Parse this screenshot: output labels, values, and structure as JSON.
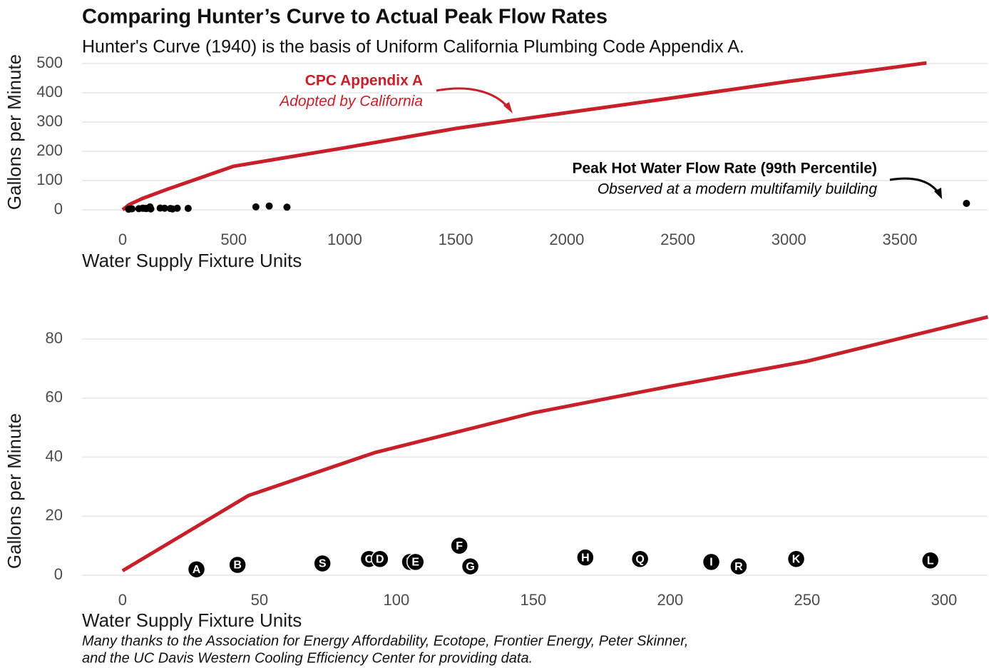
{
  "title": "Comparing Hunter’s Curve to Actual Peak Flow Rates",
  "subtitle": "Hunter's Curve (1940) is the basis of Uniform California Plumbing Code Appendix A.",
  "footnote": [
    "Many thanks to the Association for Energy Affordability, Ecotope, Frontier Energy, Peter Skinner,",
    "and the UC Davis Western Cooling Efficiency Center for providing data."
  ],
  "chart_data": [
    {
      "type": "line",
      "xlabel": "Water Supply Fixture Units",
      "ylabel": "Gallons per Minute",
      "xlim": [
        -183,
        3895
      ],
      "ylim": [
        -20,
        510
      ],
      "xticks": [
        0,
        500,
        1000,
        1500,
        2000,
        2500,
        3000,
        3500
      ],
      "yticks": [
        0,
        100,
        200,
        300,
        400,
        500
      ],
      "grid": "y",
      "lines": [
        {
          "color": "#c8202a",
          "x": [
            0,
            30,
            90,
            200,
            500,
            1000,
            1500,
            2000,
            2500,
            3000,
            3620
          ],
          "y": [
            0,
            18,
            39,
            70,
            149,
            212,
            278,
            332,
            385,
            439,
            502
          ]
        }
      ],
      "points": {
        "color": "#000000",
        "x": [
          27,
          42,
          73,
          90,
          94,
          105,
          107,
          123,
          127,
          169,
          189,
          215,
          225,
          246,
          295,
          600,
          660,
          740,
          3800
        ],
        "y": [
          2,
          3.5,
          4,
          5.5,
          5.5,
          4.5,
          4.5,
          10,
          3,
          6,
          5.5,
          4.5,
          3,
          5.5,
          5,
          10,
          13,
          9,
          22
        ]
      },
      "annotations": [
        {
          "text": "CPC Appendix A",
          "color": "#c8202a",
          "style": "bold"
        },
        {
          "text": "Adopted by California",
          "color": "#c8202a",
          "style": "italic"
        },
        {
          "text": "Peak Hot Water Flow Rate (99th Percentile)",
          "color": "#000000",
          "style": "bold"
        },
        {
          "text": "Observed at a modern multifamily building",
          "color": "#000000",
          "style": "italic"
        }
      ]
    },
    {
      "type": "line",
      "xlabel": "Water Supply Fixture Units",
      "ylabel": "Gallons per Minute",
      "xlim": [
        -14.8,
        315.9
      ],
      "ylim": [
        -3,
        88
      ],
      "xticks": [
        0,
        50,
        100,
        150,
        200,
        250,
        300
      ],
      "yticks": [
        0,
        20,
        40,
        60,
        80
      ],
      "grid": "y",
      "lines": [
        {
          "color": "#c8202a",
          "x": [
            0,
            46,
            92,
            150,
            200,
            250,
            316
          ],
          "y": [
            1.5,
            27,
            41.5,
            55,
            64,
            72.5,
            87.5
          ]
        }
      ],
      "points": {
        "color": "#000000",
        "x": [
          27,
          42,
          73,
          90,
          94,
          105,
          107,
          123,
          127,
          169,
          189,
          215,
          225,
          246,
          295
        ],
        "y": [
          2,
          3.5,
          4,
          5.5,
          5.5,
          4.5,
          4.5,
          10,
          3,
          6,
          5.5,
          4.5,
          3,
          5.5,
          5
        ],
        "labels": [
          "A",
          "B",
          "S",
          "C",
          "D",
          "T",
          "E",
          "F",
          "G",
          "H",
          "Q",
          "I",
          "R",
          "K",
          "L"
        ]
      }
    }
  ]
}
